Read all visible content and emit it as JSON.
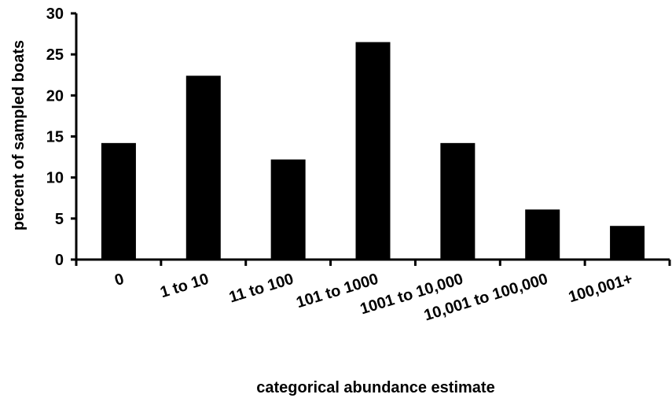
{
  "chart_data": {
    "type": "bar",
    "categories": [
      "0",
      "1 to 10",
      "11 to 100",
      "101 to 1000",
      "1001 to 10,000",
      "10,001 to 100,000",
      "100,001+"
    ],
    "values": [
      14.2,
      22.4,
      12.2,
      26.5,
      14.2,
      6.1,
      4.1
    ],
    "title": "",
    "xlabel": "categorical abundance estimate",
    "ylabel": "percent of sampled boats",
    "ylim": [
      0,
      30
    ],
    "yticks": [
      0,
      5,
      10,
      15,
      20,
      25,
      30
    ],
    "grid": false,
    "legend": "none",
    "bar_color": "#000000"
  }
}
